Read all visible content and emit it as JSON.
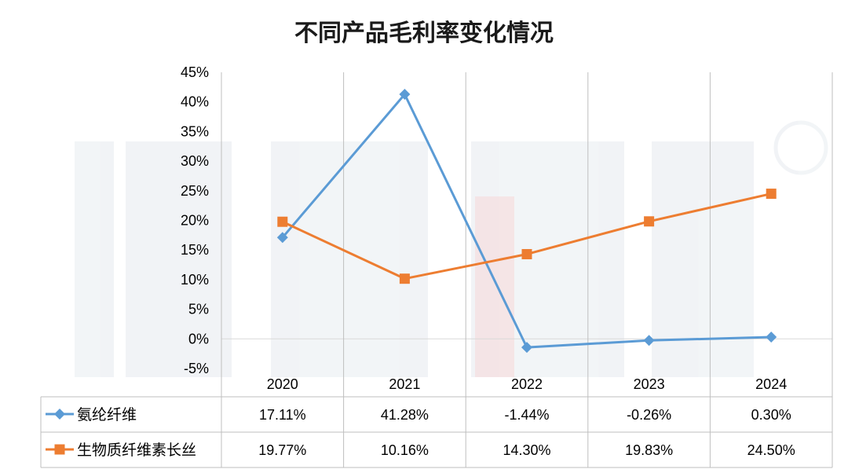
{
  "chart_data": {
    "type": "line",
    "title": "不同产品毛利率变化情况",
    "categories": [
      "2020",
      "2021",
      "2022",
      "2023",
      "2024"
    ],
    "ylim": [
      -5,
      45
    ],
    "ytick_step": 5,
    "ytick_suffix": "%",
    "grid": "vertical",
    "legend": "data-table",
    "series": [
      {
        "name": "氨纶纤维",
        "values": [
          17.11,
          41.28,
          -1.44,
          -0.26,
          0.3
        ],
        "labels": [
          "17.11%",
          "41.28%",
          "-1.44%",
          "-0.26%",
          "0.30%"
        ],
        "color": "#5b9bd5",
        "marker": "diamond"
      },
      {
        "name": "生物质纤维素长丝",
        "values": [
          19.77,
          10.16,
          14.3,
          19.83,
          24.5
        ],
        "labels": [
          "19.77%",
          "10.16%",
          "14.30%",
          "19.83%",
          "24.50%"
        ],
        "color": "#ed7d31",
        "marker": "square"
      }
    ]
  }
}
